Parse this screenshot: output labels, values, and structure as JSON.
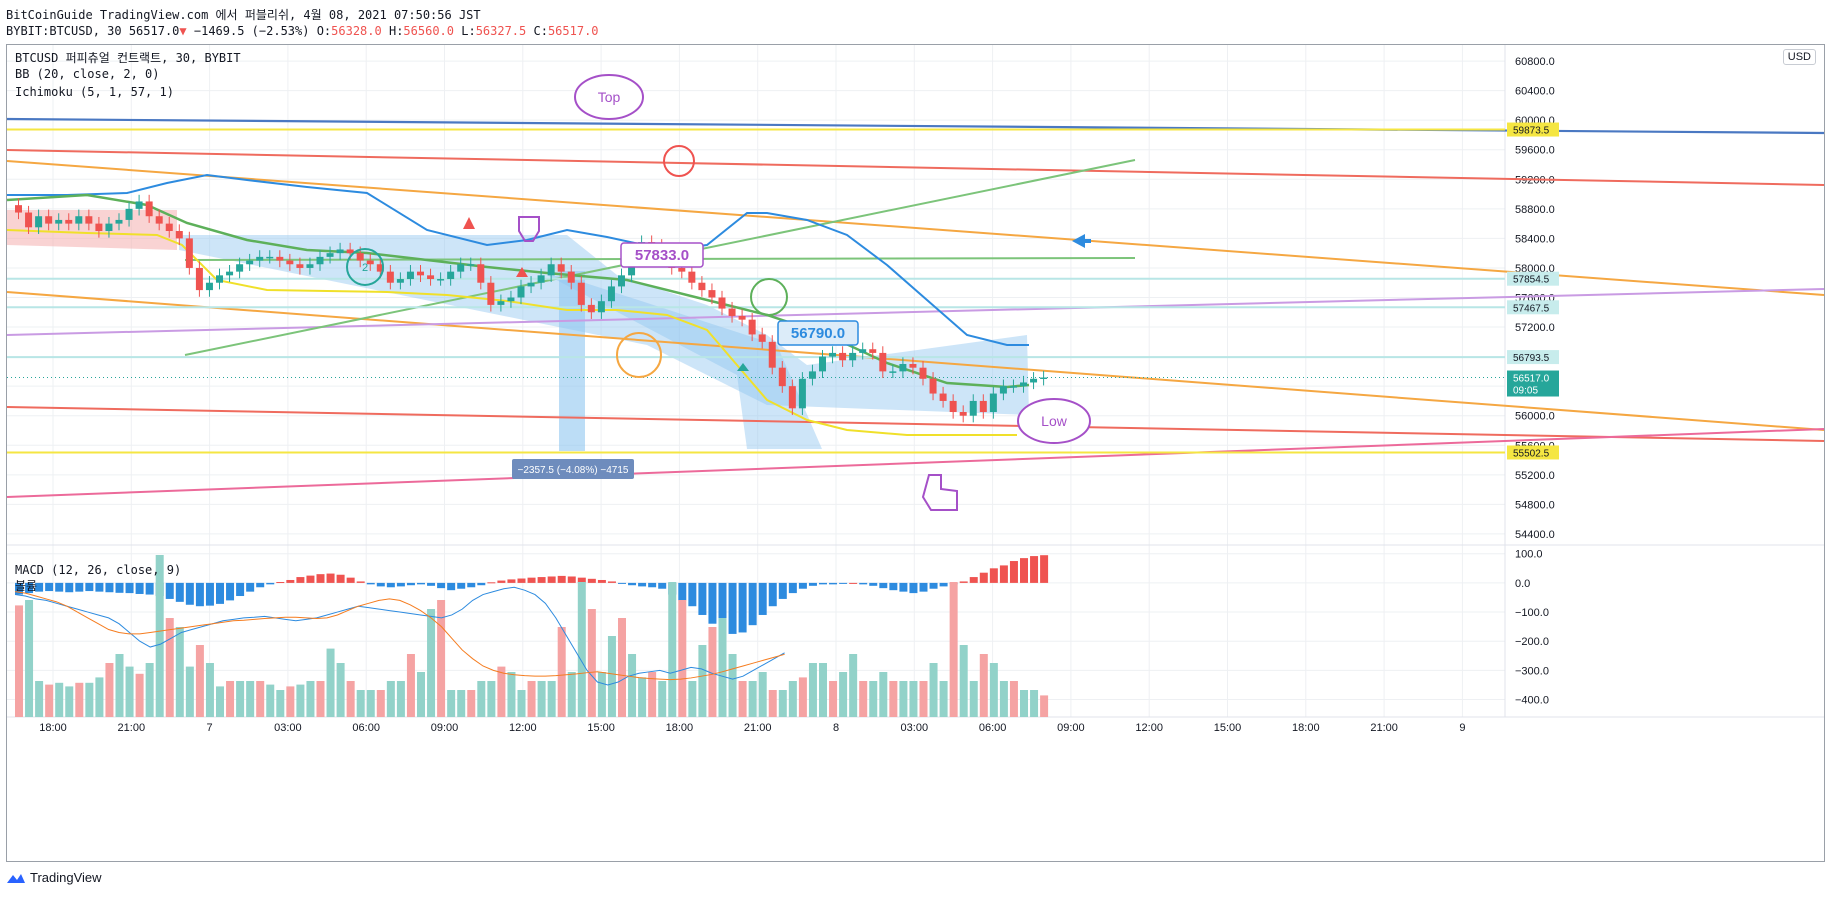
{
  "header": {
    "line1": "BitCoinGuide TradingView.com 에서 퍼블리쉬, 4월 08, 2021 07:50:56 JST",
    "symbol": "BYBIT:BTCUSD, 30",
    "last": "56517.0",
    "arrow": "▼",
    "change": "−1469.5 (−2.53%)",
    "o_label": "O:",
    "o": "56328.0",
    "h_label": "H:",
    "h": "56560.0",
    "l_label": "L:",
    "l": "56327.5",
    "c_label": "C:",
    "c": "56517.0"
  },
  "legend": {
    "title": "BTCUSD 퍼피츄얼 컨트랙트, 30, BYBIT",
    "bb": "BB (20, close, 2, 0)",
    "ichimoku": "Ichimoku (5, 1, 57, 1)",
    "macd": "MACD (12, 26, close, 9)",
    "volume": "볼륨"
  },
  "currency_button": "USD",
  "footer": {
    "brand": "TradingView"
  },
  "annotations": {
    "top": "Top",
    "low": "Low",
    "label_57833": "57833.0",
    "label_56790": "56790.0",
    "measure": "−2357.5 (−4.08%) −4715",
    "circle_num": "2"
  },
  "price_tags": [
    {
      "value": 59873.5,
      "label": "59873.5",
      "color": "#f5e642",
      "text_color": "#131722"
    },
    {
      "value": 57854.5,
      "label": "57854.5",
      "color": "#c7ecec",
      "text_color": "#131722"
    },
    {
      "value": 57467.5,
      "label": "57467.5",
      "color": "#c7ecec",
      "text_color": "#131722"
    },
    {
      "value": 56793.5,
      "label": "56793.5",
      "color": "#c7ecec",
      "text_color": "#131722"
    },
    {
      "value": 56517.0,
      "label": "56517.0",
      "sub": "09:05",
      "color": "#26a69a",
      "text_color": "#ffffff"
    },
    {
      "value": 55502.5,
      "label": "55502.5",
      "color": "#f5e642",
      "text_color": "#131722"
    }
  ],
  "chart_data": {
    "type": "candlestick",
    "symbol": "BYBIT:BTCUSD",
    "interval": "30",
    "y_axis_price": {
      "ticks": [
        60800,
        60400,
        60000,
        59600,
        59200,
        58800,
        58400,
        58000,
        57600,
        57200,
        56800,
        56400,
        56000,
        55600,
        55200,
        54800,
        54400
      ],
      "tick_labels": [
        "60800.0",
        "60400.0",
        "60000.0",
        "59600.0",
        "59200.0",
        "58800.0",
        "58400.0",
        "58000.0",
        "57600.0",
        "57200.0",
        "56800.0",
        "56400.0",
        "56000.0",
        "55600.0",
        "55200.0",
        "54800.0",
        "54400.0"
      ],
      "range": [
        54250,
        60950
      ]
    },
    "y_axis_macd": {
      "ticks": [
        100,
        0,
        -100,
        -200,
        -300,
        -400
      ],
      "tick_labels": [
        "100.0",
        "0.0",
        "−100.0",
        "−200.0",
        "−300.0",
        "−400.0"
      ],
      "range": [
        -460,
        130
      ]
    },
    "x_axis": {
      "ticks": [
        "18:00",
        "21:00",
        "7",
        "03:00",
        "06:00",
        "09:00",
        "12:00",
        "15:00",
        "18:00",
        "21:00",
        "8",
        "03:00",
        "06:00",
        "09:00",
        "12:00",
        "15:00",
        "18:00",
        "21:00",
        "9"
      ]
    },
    "close": [
      58750,
      58550,
      58700,
      58600,
      58650,
      58600,
      58700,
      58600,
      58500,
      58600,
      58650,
      58800,
      58900,
      58700,
      58600,
      58500,
      58400,
      58000,
      57700,
      57800,
      57900,
      57950,
      58050,
      58100,
      58150,
      58150,
      58100,
      58050,
      58000,
      58050,
      58150,
      58200,
      58250,
      58200,
      58100,
      58050,
      57950,
      57800,
      57850,
      57950,
      57900,
      57850,
      57850,
      57950,
      58050,
      58050,
      57800,
      57500,
      57550,
      57600,
      57750,
      57800,
      57900,
      58050,
      57950,
      57800,
      57500,
      57400,
      57550,
      57750,
      57900,
      58100,
      58350,
      58300,
      58200,
      58000,
      57950,
      57800,
      57700,
      57600,
      57450,
      57350,
      57300,
      57100,
      57000,
      56650,
      56400,
      56100,
      56500,
      56600,
      56800,
      56850,
      56750,
      56850,
      56900,
      56850,
      56600,
      56600,
      56700,
      56650,
      56500,
      56300,
      56200,
      56050,
      56000,
      56200,
      56050,
      56300,
      56400,
      56400,
      56450,
      56500,
      56517
    ],
    "macd_hist": [
      -40,
      -35,
      -30,
      -28,
      -30,
      -32,
      -30,
      -28,
      -30,
      -32,
      -34,
      -35,
      -38,
      -40,
      -45,
      -55,
      -65,
      -75,
      -80,
      -78,
      -72,
      -60,
      -45,
      -30,
      -15,
      -5,
      3,
      10,
      20,
      25,
      30,
      32,
      28,
      18,
      5,
      -5,
      -12,
      -15,
      -12,
      -8,
      -5,
      -10,
      -18,
      -25,
      -20,
      -15,
      -8,
      2,
      8,
      12,
      15,
      18,
      20,
      22,
      24,
      22,
      18,
      14,
      10,
      5,
      -2,
      -8,
      -12,
      -15,
      -20,
      -40,
      -60,
      -80,
      -110,
      -140,
      -160,
      -175,
      -170,
      -145,
      -110,
      -80,
      -55,
      -35,
      -20,
      -10,
      -5,
      -5,
      -3,
      0,
      -5,
      -10,
      -18,
      -25,
      -30,
      -35,
      -30,
      -20,
      -12,
      -5,
      5,
      20,
      35,
      50,
      60,
      75,
      85,
      92,
      95
    ],
    "macd": [
      -40,
      -45,
      -55,
      -60,
      -70,
      -80,
      -90,
      -100,
      -110,
      -120,
      -140,
      -170,
      -200,
      -220,
      -210,
      -190,
      -170,
      -160,
      -150,
      -140,
      -130,
      -125,
      -120,
      -118,
      -115,
      -120,
      -125,
      -130,
      -125,
      -120,
      -110,
      -100,
      -90,
      -80,
      -85,
      -90,
      -95,
      -100,
      -105,
      -110,
      -115,
      -120,
      -110,
      -90,
      -60,
      -40,
      -30,
      -20,
      -15,
      -25,
      -40,
      -70,
      -120,
      -180,
      -240,
      -300,
      -340,
      -350,
      -340,
      -320,
      -310,
      -305,
      -300,
      -310,
      -300,
      -290,
      -295,
      -310,
      -320,
      -330,
      -320,
      -300,
      -280,
      -260,
      -240
    ],
    "macd_signal": [
      -30,
      -35,
      -45,
      -55,
      -65,
      -80,
      -100,
      -120,
      -140,
      -160,
      -170,
      -175,
      -175,
      -170,
      -165,
      -160,
      -155,
      -150,
      -145,
      -140,
      -135,
      -130,
      -128,
      -125,
      -122,
      -120,
      -118,
      -118,
      -120,
      -122,
      -120,
      -110,
      -95,
      -80,
      -70,
      -60,
      -55,
      -60,
      -75,
      -95,
      -120,
      -150,
      -190,
      -230,
      -260,
      -285,
      -300,
      -310,
      -315,
      -318,
      -320,
      -320,
      -318,
      -315,
      -312,
      -308,
      -305,
      -310,
      -315,
      -320,
      -325,
      -328,
      -330,
      -332,
      -330,
      -326,
      -320,
      -314,
      -305,
      -295,
      -285,
      -275,
      -265,
      -255,
      -245
    ],
    "volume": [
      0.62,
      0.65,
      0.2,
      0.18,
      0.19,
      0.17,
      0.19,
      0.19,
      0.22,
      0.3,
      0.35,
      0.28,
      0.24,
      0.3,
      0.9,
      0.55,
      0.5,
      0.28,
      0.4,
      0.3,
      0.17,
      0.2,
      0.2,
      0.2,
      0.2,
      0.18,
      0.15,
      0.17,
      0.18,
      0.2,
      0.2,
      0.38,
      0.3,
      0.2,
      0.15,
      0.15,
      0.15,
      0.2,
      0.2,
      0.35,
      0.25,
      0.6,
      0.65,
      0.15,
      0.15,
      0.15,
      0.2,
      0.2,
      0.28,
      0.25,
      0.15,
      0.2,
      0.2,
      0.2,
      0.5,
      0.25,
      0.75,
      0.6,
      0.25,
      0.45,
      0.55,
      0.35,
      0.22,
      0.25,
      0.2,
      0.75,
      0.65,
      0.2,
      0.4,
      0.5,
      0.55,
      0.35,
      0.2,
      0.2,
      0.25,
      0.15,
      0.15,
      0.2,
      0.22,
      0.3,
      0.3,
      0.2,
      0.25,
      0.35,
      0.2,
      0.2,
      0.25,
      0.2,
      0.2,
      0.2,
      0.2,
      0.3,
      0.2,
      0.75,
      0.4,
      0.2,
      0.35,
      0.3,
      0.2,
      0.2,
      0.15,
      0.15,
      0.12
    ]
  }
}
